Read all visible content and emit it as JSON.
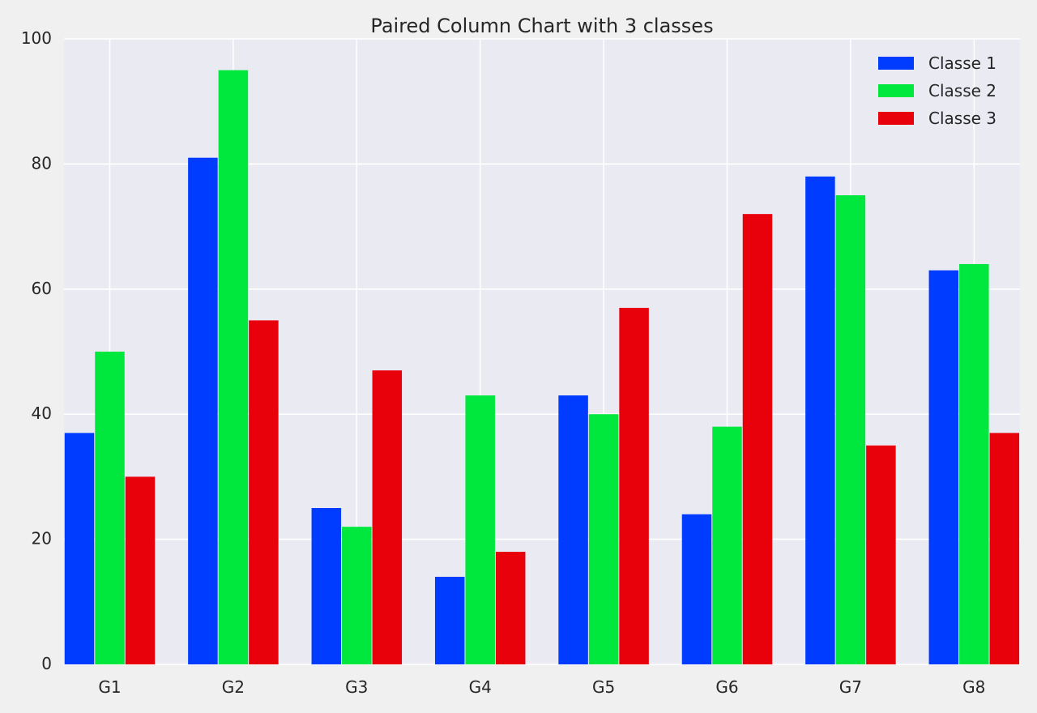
{
  "chart_data": {
    "type": "bar",
    "title": "Paired Column Chart with 3 classes",
    "xlabel": "",
    "ylabel": "",
    "categories": [
      "G1",
      "G2",
      "G3",
      "G4",
      "G5",
      "G6",
      "G7",
      "G8"
    ],
    "series": [
      {
        "name": "Classe 1",
        "color": "#003cff",
        "values": [
          37,
          81,
          25,
          14,
          43,
          24,
          78,
          63
        ]
      },
      {
        "name": "Classe 2",
        "color": "#00e83d",
        "values": [
          50,
          95,
          22,
          43,
          40,
          38,
          75,
          64
        ]
      },
      {
        "name": "Classe 3",
        "color": "#e8000b",
        "values": [
          30,
          55,
          47,
          18,
          57,
          72,
          35,
          37
        ]
      }
    ],
    "ylim": [
      0,
      100
    ],
    "yticks": [
      0,
      20,
      40,
      60,
      80,
      100
    ],
    "grid": true,
    "legend_position": "top-right",
    "plot_background": "#eaeaf2",
    "grid_color": "#ffffff"
  }
}
